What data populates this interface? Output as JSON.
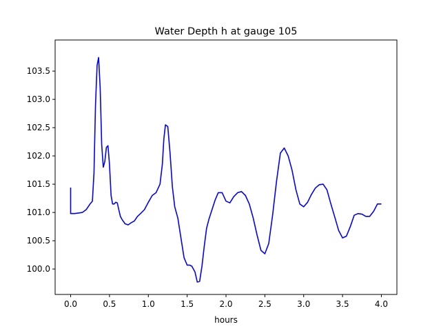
{
  "chart_data": {
    "type": "line",
    "title": "Water Depth h at gauge 105",
    "xlabel": "hours",
    "ylabel": "",
    "xlim": [
      -0.2,
      4.2
    ],
    "ylim": [
      99.55,
      104.05
    ],
    "grid": false,
    "legend": "none",
    "x_ticks": [
      0.0,
      0.5,
      1.0,
      1.5,
      2.0,
      2.5,
      3.0,
      3.5,
      4.0
    ],
    "x_tick_labels": [
      "0.0",
      "0.5",
      "1.0",
      "1.5",
      "2.0",
      "2.5",
      "3.0",
      "3.5",
      "4.0"
    ],
    "y_ticks": [
      100.0,
      100.5,
      101.0,
      101.5,
      102.0,
      102.5,
      103.0,
      103.5
    ],
    "y_tick_labels": [
      "100.0",
      "100.5",
      "101.0",
      "101.5",
      "102.0",
      "102.5",
      "103.0",
      "103.5"
    ],
    "series": [
      {
        "color": "#0000ff",
        "x": [
          0.0,
          0.0,
          0.01,
          0.05,
          0.1,
          0.15,
          0.2,
          0.25,
          0.28,
          0.3,
          0.32,
          0.34,
          0.36,
          0.38,
          0.4,
          0.42,
          0.44,
          0.46,
          0.48,
          0.5,
          0.52,
          0.54,
          0.56,
          0.58,
          0.6,
          0.62,
          0.64,
          0.66,
          0.7,
          0.74,
          0.78,
          0.82,
          0.86,
          0.9,
          0.95,
          1.0,
          1.05,
          1.1,
          1.15,
          1.18,
          1.2,
          1.22,
          1.25,
          1.28,
          1.31,
          1.34,
          1.38,
          1.42,
          1.46,
          1.5,
          1.53,
          1.56,
          1.6,
          1.63,
          1.66,
          1.69,
          1.72,
          1.75,
          1.78,
          1.82,
          1.86,
          1.9,
          1.95,
          2.0,
          2.05,
          2.1,
          2.15,
          2.2,
          2.25,
          2.3,
          2.35,
          2.4,
          2.45,
          2.5,
          2.55,
          2.6,
          2.65,
          2.7,
          2.75,
          2.8,
          2.85,
          2.9,
          2.95,
          3.0,
          3.05,
          3.1,
          3.15,
          3.2,
          3.25,
          3.3,
          3.35,
          3.4,
          3.45,
          3.5,
          3.55,
          3.6,
          3.65,
          3.7,
          3.75,
          3.8,
          3.85,
          3.9,
          3.95,
          4.0
        ],
        "y": [
          101.44,
          100.98,
          100.98,
          100.98,
          100.99,
          101.0,
          101.05,
          101.15,
          101.2,
          101.7,
          102.9,
          103.6,
          103.74,
          103.2,
          102.2,
          101.8,
          101.9,
          102.15,
          102.18,
          101.85,
          101.3,
          101.15,
          101.15,
          101.18,
          101.17,
          101.05,
          100.93,
          100.88,
          100.8,
          100.78,
          100.82,
          100.85,
          100.93,
          100.98,
          101.05,
          101.18,
          101.3,
          101.35,
          101.5,
          101.85,
          102.3,
          102.55,
          102.52,
          102.05,
          101.45,
          101.1,
          100.9,
          100.55,
          100.2,
          100.07,
          100.07,
          100.05,
          99.95,
          99.77,
          99.78,
          100.05,
          100.4,
          100.72,
          100.88,
          101.05,
          101.22,
          101.35,
          101.35,
          101.2,
          101.17,
          101.28,
          101.35,
          101.37,
          101.3,
          101.15,
          100.9,
          100.6,
          100.33,
          100.27,
          100.45,
          100.95,
          101.55,
          102.05,
          102.14,
          102.0,
          101.75,
          101.4,
          101.15,
          101.1,
          101.18,
          101.32,
          101.43,
          101.49,
          101.5,
          101.4,
          101.15,
          100.92,
          100.68,
          100.55,
          100.58,
          100.75,
          100.95,
          100.98,
          100.97,
          100.93,
          100.93,
          101.02,
          101.15,
          101.15
        ]
      }
    ]
  }
}
